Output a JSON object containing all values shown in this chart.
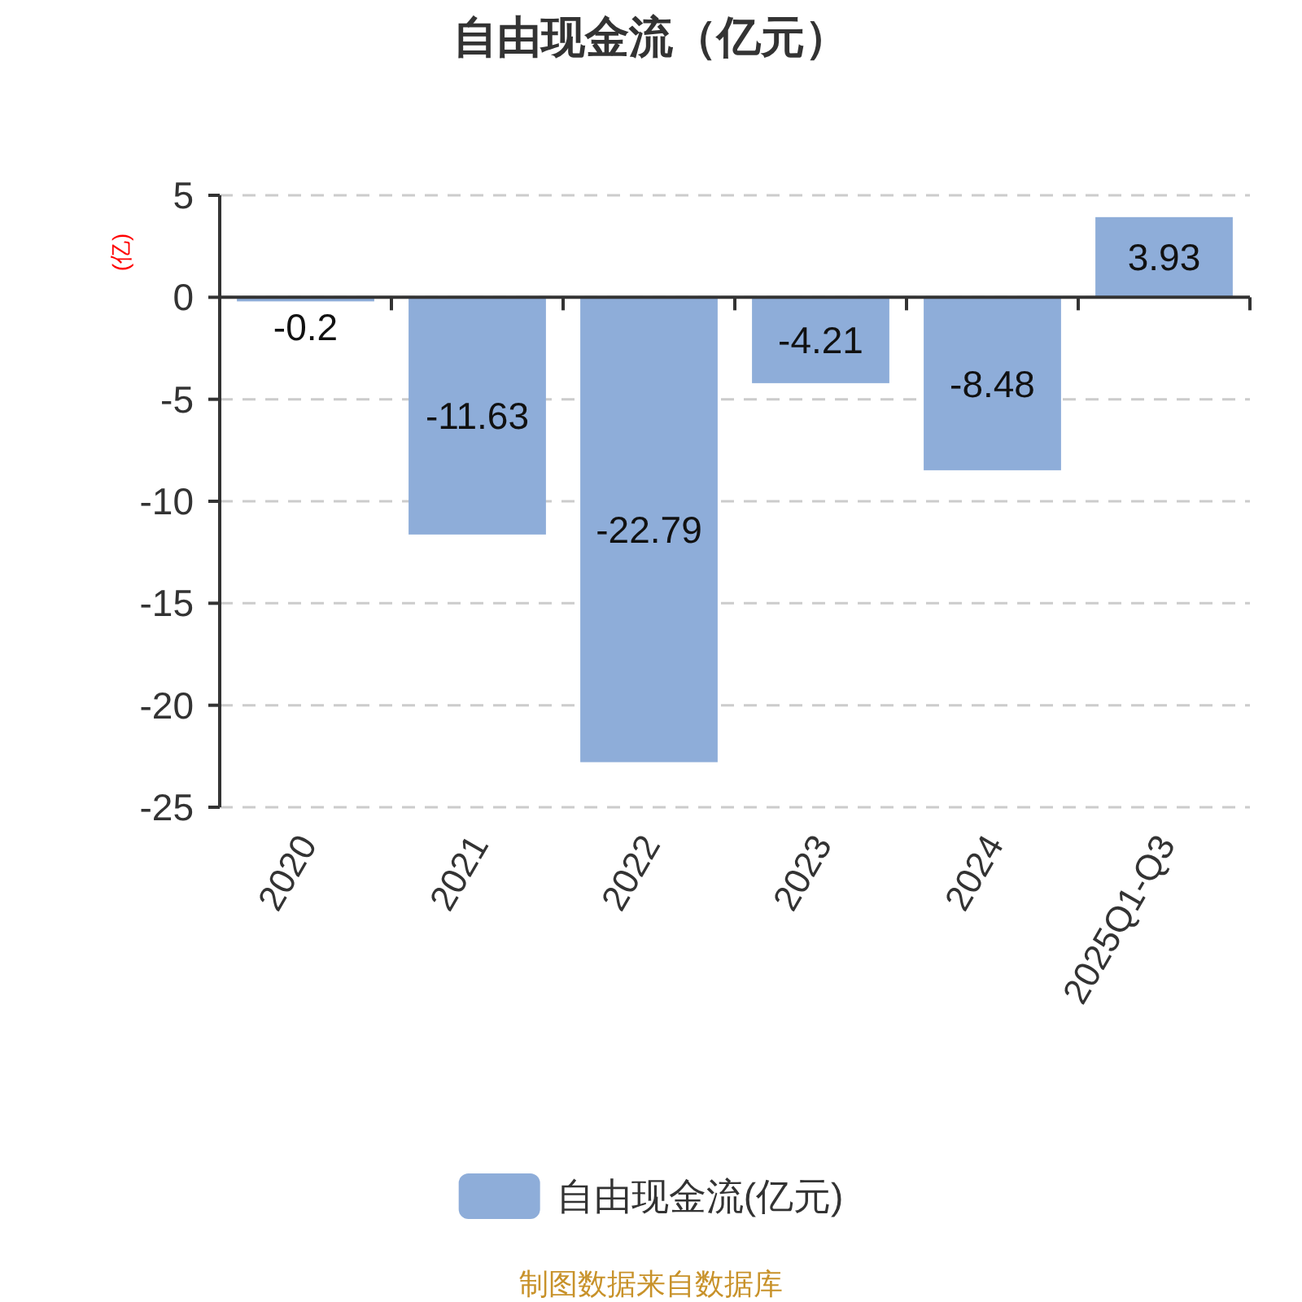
{
  "chart_data": {
    "type": "bar",
    "title": "自由现金流（亿元）",
    "ylabel": "(亿)",
    "categories": [
      "2020",
      "2021",
      "2022",
      "2023",
      "2024",
      "2025Q1-Q3"
    ],
    "series": [
      {
        "name": "自由现金流(亿元)",
        "color": "#8eadd9",
        "values": [
          -0.2,
          -11.63,
          -22.79,
          -4.21,
          -8.48,
          3.93
        ]
      }
    ],
    "ylim": [
      -25,
      5
    ],
    "yticks": [
      -25,
      -20,
      -15,
      -10,
      -5,
      0,
      5
    ],
    "grid": "y",
    "legend": "bottom",
    "data_labels": true,
    "annotations": [
      "制图数据来自数据库"
    ]
  }
}
